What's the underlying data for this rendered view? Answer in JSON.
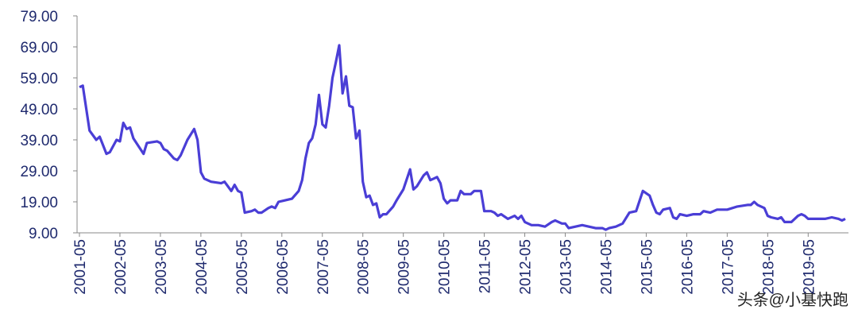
{
  "chart_data": {
    "type": "line",
    "x": [
      "2001-05",
      "2001-06",
      "2001-08",
      "2001-10",
      "2001-11",
      "2002-01",
      "2002-02",
      "2002-04",
      "2002-05",
      "2002-06",
      "2002-07",
      "2002-08",
      "2002-09",
      "2002-12",
      "2003-01",
      "2003-04",
      "2003-05",
      "2003-06",
      "2003-07",
      "2003-09",
      "2003-10",
      "2003-11",
      "2004-01",
      "2004-03",
      "2004-04",
      "2004-05",
      "2004-06",
      "2004-08",
      "2004-11",
      "2004-12",
      "2005-01",
      "2005-02",
      "2005-03",
      "2005-04",
      "2005-05",
      "2005-06",
      "2005-08",
      "2005-09",
      "2005-10",
      "2005-11",
      "2006-01",
      "2006-02",
      "2006-03",
      "2006-04",
      "2006-06",
      "2006-08",
      "2006-10",
      "2006-11",
      "2006-12",
      "2007-01",
      "2007-02",
      "2007-03",
      "2007-04",
      "2007-05",
      "2007-06",
      "2007-07",
      "2007-08",
      "2007-09",
      "2007-10",
      "2007-11",
      "2007-12",
      "2008-01",
      "2008-02",
      "2008-03",
      "2008-04",
      "2008-05",
      "2008-06",
      "2008-07",
      "2008-08",
      "2008-09",
      "2008-10",
      "2008-11",
      "2008-12",
      "2009-02",
      "2009-03",
      "2009-05",
      "2009-07",
      "2009-08",
      "2009-09",
      "2009-11",
      "2009-12",
      "2010-01",
      "2010-02",
      "2010-03",
      "2010-04",
      "2010-05",
      "2010-06",
      "2010-07",
      "2010-09",
      "2010-10",
      "2010-11",
      "2011-01",
      "2011-02",
      "2011-04",
      "2011-05",
      "2011-07",
      "2011-08",
      "2011-09",
      "2011-10",
      "2011-12",
      "2012-02",
      "2012-03",
      "2012-04",
      "2012-05",
      "2012-07",
      "2012-09",
      "2012-11",
      "2013-01",
      "2013-02",
      "2013-04",
      "2013-05",
      "2013-06",
      "2013-08",
      "2013-10",
      "2013-12",
      "2014-02",
      "2014-04",
      "2014-05",
      "2014-06",
      "2014-08",
      "2014-10",
      "2014-12",
      "2015-02",
      "2015-04",
      "2015-06",
      "2015-07",
      "2015-08",
      "2015-09",
      "2015-10",
      "2015-12",
      "2016-01",
      "2016-02",
      "2016-03",
      "2016-05",
      "2016-07",
      "2016-09",
      "2016-10",
      "2016-12",
      "2017-02",
      "2017-05",
      "2017-08",
      "2017-11",
      "2017-12",
      "2018-01",
      "2018-02",
      "2018-04",
      "2018-05",
      "2018-06",
      "2018-08",
      "2018-09",
      "2018-10",
      "2018-12",
      "2019-02",
      "2019-03",
      "2019-04",
      "2019-05",
      "2019-07",
      "2019-10",
      "2019-12",
      "2020-02",
      "2020-03",
      "2020-04"
    ],
    "series": [
      {
        "color": "#4a3ed6",
        "values": [
          56,
          56.5,
          42,
          39,
          40,
          34.5,
          35,
          39,
          38.5,
          44.5,
          42.5,
          43,
          39.5,
          34.5,
          38,
          38.5,
          38,
          36,
          35.5,
          33,
          32.5,
          34,
          39,
          42.5,
          39,
          28.5,
          26.5,
          25.5,
          25,
          25.5,
          24,
          22.5,
          24.5,
          22.5,
          22,
          15.5,
          16,
          16.5,
          15.5,
          15.5,
          17,
          17.5,
          17,
          19,
          19.5,
          20,
          22.5,
          26,
          33,
          38,
          39.5,
          44,
          53.5,
          44,
          43,
          50,
          59,
          64,
          69.5,
          54,
          59.5,
          50,
          49.5,
          39.5,
          42,
          25.5,
          20.5,
          21,
          18,
          18.5,
          14,
          15,
          15,
          17.5,
          19.5,
          23,
          29.5,
          23,
          24,
          27.5,
          28.5,
          26,
          26.5,
          27,
          25,
          20,
          18.5,
          19.5,
          19.5,
          22.5,
          21.5,
          21.5,
          22.5,
          22.5,
          16,
          16,
          15.5,
          14.5,
          15,
          13.5,
          14.5,
          13.5,
          14.5,
          12.5,
          11.5,
          11.5,
          11,
          12.5,
          13,
          12,
          12,
          10.5,
          11,
          11.5,
          11,
          10.5,
          10.5,
          10,
          10.5,
          11,
          12,
          15.5,
          16,
          22.5,
          21,
          18,
          15.5,
          15,
          16.5,
          17,
          14,
          13.5,
          15,
          14.5,
          15,
          15,
          16,
          15.5,
          16.5,
          16.5,
          17.5,
          18,
          18,
          19,
          18,
          17,
          14.5,
          14,
          13.5,
          14,
          12.5,
          12.5,
          14.5,
          15,
          14.5,
          13.5,
          13.5,
          13.5,
          14,
          13.5,
          13,
          13.5
        ]
      }
    ],
    "xlim": [
      "2001-05",
      "2020-04"
    ],
    "xticks": [
      "2001-05",
      "2002-05",
      "2003-05",
      "2004-05",
      "2005-05",
      "2006-05",
      "2007-05",
      "2008-05",
      "2009-05",
      "2010-05",
      "2011-05",
      "2012-05",
      "2013-05",
      "2014-05",
      "2015-05",
      "2016-05",
      "2017-05",
      "2018-05",
      "2019-05"
    ],
    "ylim": [
      9,
      79
    ],
    "yticks": [
      {
        "value": 9,
        "label": "9.00"
      },
      {
        "value": 19,
        "label": "19.00"
      },
      {
        "value": 29,
        "label": "29.00"
      },
      {
        "value": 39,
        "label": "39.00"
      },
      {
        "value": 49,
        "label": "49.00"
      },
      {
        "value": 59,
        "label": "59.00"
      },
      {
        "value": 69,
        "label": "69.00"
      },
      {
        "value": 79,
        "label": "79.00"
      }
    ],
    "grid": false,
    "watermark": "头条@小基快跑"
  }
}
